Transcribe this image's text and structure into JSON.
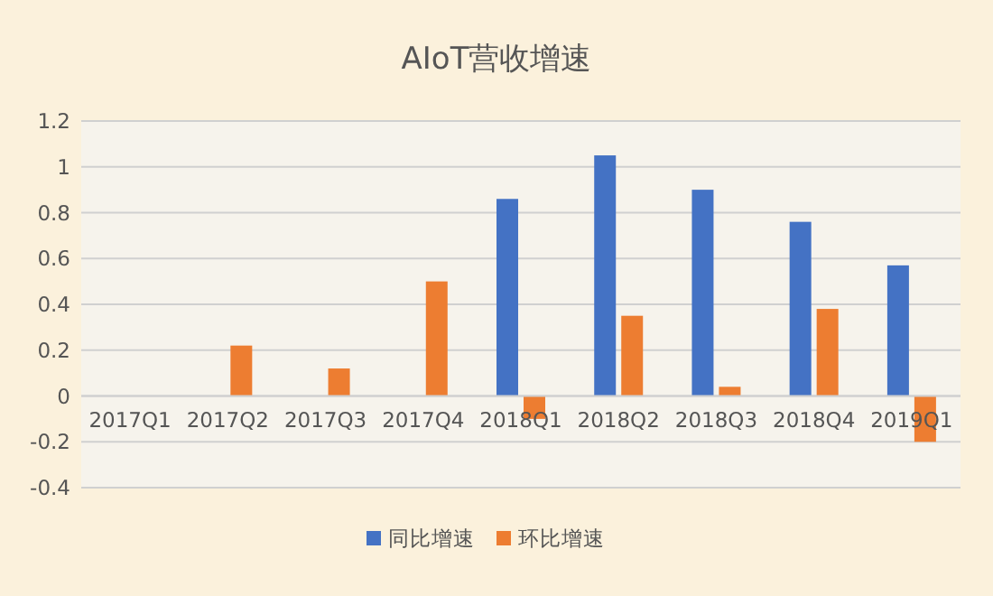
{
  "chart_data": {
    "type": "bar",
    "title": "AIoT营收增速",
    "categories": [
      "2017Q1",
      "2017Q2",
      "2017Q3",
      "2017Q4",
      "2018Q1",
      "2018Q2",
      "2018Q3",
      "2018Q4",
      "2019Q1"
    ],
    "series": [
      {
        "name": "同比增速",
        "color": "#4472c4",
        "values": [
          null,
          null,
          null,
          null,
          0.86,
          1.05,
          0.9,
          0.76,
          0.57
        ]
      },
      {
        "name": "环比增速",
        "color": "#ed7d31",
        "values": [
          null,
          0.22,
          0.12,
          0.5,
          -0.1,
          0.35,
          0.04,
          0.38,
          -0.2
        ]
      }
    ],
    "ylim": [
      -0.4,
      1.2
    ],
    "yticks": [
      -0.4,
      -0.2,
      0,
      0.2,
      0.4,
      0.6,
      0.8,
      1,
      1.2
    ],
    "grid": "y",
    "legend": "bottom"
  }
}
